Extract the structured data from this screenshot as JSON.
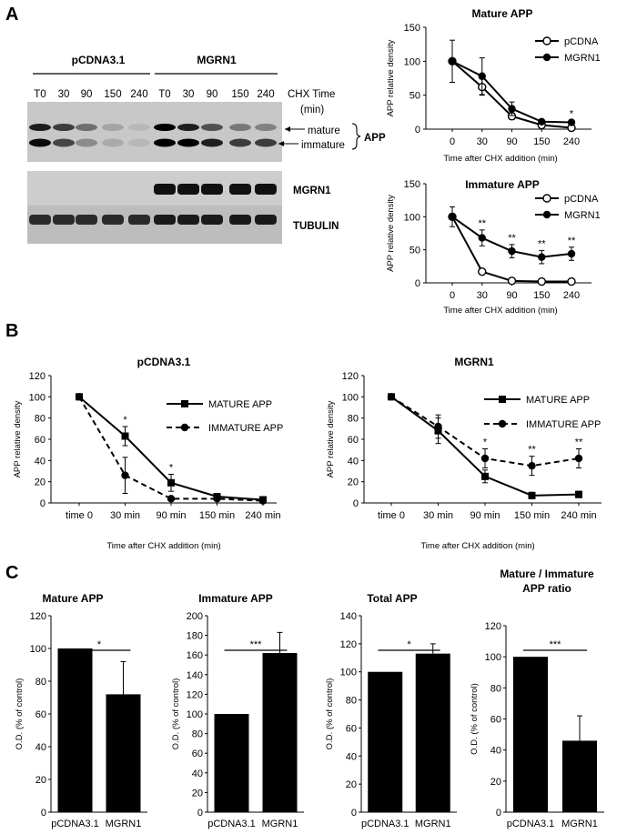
{
  "panels": {
    "A": "A",
    "B": "B",
    "C": "C"
  },
  "colors": {
    "ink": "#000000",
    "paper": "#ffffff",
    "blot_bg": "#c8c8c8"
  },
  "blot": {
    "groups": [
      "pCDNA3.1",
      "MGRN1"
    ],
    "lane_labels": [
      "T0",
      "30",
      "90",
      "150",
      "240",
      "T0",
      "30",
      "90",
      "150",
      "240"
    ],
    "chx_label_line1": "CHX Time",
    "chx_label_line2": "(min)",
    "band_labels": {
      "mature": "mature",
      "immature": "immature",
      "app": "APP"
    },
    "rows": [
      "MGRN1",
      "TUBULIN"
    ]
  },
  "chart_data": [
    {
      "id": "a-mature",
      "type": "line",
      "title": "Mature APP",
      "xlabel": "Time after CHX addition (min)",
      "ylabel": "APP relative density",
      "categories": [
        "0",
        "30",
        "90",
        "150",
        "240"
      ],
      "ylim": [
        0,
        150
      ],
      "yticks": [
        0,
        50,
        100,
        150
      ],
      "series": [
        {
          "name": "pCDNA",
          "values": [
            100,
            62,
            19,
            6,
            2
          ],
          "errors": [
            0,
            12,
            5,
            3,
            2
          ],
          "marker": "circle-open",
          "dash": false
        },
        {
          "name": "MGRN1",
          "values": [
            100,
            78,
            30,
            11,
            10
          ],
          "errors": [
            31,
            27,
            10,
            3,
            3
          ],
          "marker": "circle-filled",
          "dash": false
        }
      ],
      "annotations": [
        {
          "category": 4,
          "y": 10,
          "err": 3,
          "text": "*"
        }
      ],
      "legend": "top-right"
    },
    {
      "id": "a-immature",
      "type": "line",
      "title": "Immature APP",
      "xlabel": "Time after CHX addition (min)",
      "ylabel": "APP relative density",
      "categories": [
        "0",
        "30",
        "90",
        "150",
        "240"
      ],
      "ylim": [
        0,
        150
      ],
      "yticks": [
        0,
        50,
        100,
        150
      ],
      "series": [
        {
          "name": "pCDNA",
          "values": [
            100,
            17,
            3,
            2,
            2
          ],
          "errors": [
            0,
            3,
            1,
            1,
            1
          ],
          "marker": "circle-open",
          "dash": false
        },
        {
          "name": "MGRN1",
          "values": [
            100,
            68,
            48,
            39,
            44
          ],
          "errors": [
            15,
            12,
            10,
            10,
            10
          ],
          "marker": "circle-filled",
          "dash": false
        }
      ],
      "annotations": [
        {
          "category": 1,
          "y": 68,
          "err": 12,
          "text": "**"
        },
        {
          "category": 2,
          "y": 48,
          "err": 10,
          "text": "**"
        },
        {
          "category": 3,
          "y": 39,
          "err": 10,
          "text": "**"
        },
        {
          "category": 4,
          "y": 44,
          "err": 10,
          "text": "**"
        }
      ],
      "legend": "top-right"
    },
    {
      "id": "b-pcdna",
      "type": "line",
      "title": "pCDNA3.1",
      "xlabel": "Time after CHX addition (min)",
      "ylabel": "APP relative density",
      "categories": [
        "time 0",
        "30 min",
        "90 min",
        "150 min",
        "240 min"
      ],
      "ylim": [
        0,
        120
      ],
      "yticks": [
        0,
        20,
        40,
        60,
        80,
        100,
        120
      ],
      "series": [
        {
          "name": "MATURE APP",
          "values": [
            100,
            63,
            19,
            6,
            3
          ],
          "errors": [
            0,
            9,
            8,
            2,
            1
          ],
          "marker": "square-filled",
          "dash": false
        },
        {
          "name": "IMMATURE APP",
          "values": [
            100,
            26,
            4,
            4,
            2
          ],
          "errors": [
            0,
            17,
            2,
            1,
            1
          ],
          "marker": "circle-filled",
          "dash": true
        }
      ],
      "annotations": [
        {
          "category": 1,
          "y": 63,
          "err": 9,
          "text": "*"
        },
        {
          "category": 2,
          "y": 19,
          "err": 8,
          "text": "*"
        }
      ],
      "legend": "top-right"
    },
    {
      "id": "b-mgrn1",
      "type": "line",
      "title": "MGRN1",
      "xlabel": "Time after CHX addition (min)",
      "ylabel": "APP relative density",
      "categories": [
        "time 0",
        "30 min",
        "90 min",
        "150 min",
        "240 min"
      ],
      "ylim": [
        0,
        120
      ],
      "yticks": [
        0,
        20,
        40,
        60,
        80,
        100,
        120
      ],
      "series": [
        {
          "name": "MATURE APP",
          "values": [
            100,
            68,
            25,
            7,
            8
          ],
          "errors": [
            0,
            12,
            6,
            3,
            3
          ],
          "marker": "square-filled",
          "dash": false
        },
        {
          "name": "IMMATURE APP",
          "values": [
            100,
            72,
            42,
            35,
            42
          ],
          "errors": [
            0,
            11,
            9,
            9,
            9
          ],
          "marker": "circle-filled",
          "dash": true
        }
      ],
      "annotations": [
        {
          "category": 2,
          "y": 42,
          "err": 9,
          "text": "*"
        },
        {
          "category": 3,
          "y": 35,
          "err": 9,
          "text": "**"
        },
        {
          "category": 4,
          "y": 42,
          "err": 9,
          "text": "**"
        }
      ],
      "legend": "top-right"
    },
    {
      "id": "c-mature",
      "type": "bar",
      "title": "Mature APP",
      "ylabel": "O.D. (% of control)",
      "categories": [
        "pCDNA3.1",
        "MGRN1"
      ],
      "values": [
        100,
        72
      ],
      "errors": [
        0,
        20
      ],
      "ylim": [
        0,
        120
      ],
      "yticks": [
        0,
        20,
        40,
        60,
        80,
        100,
        120
      ],
      "significance": "*"
    },
    {
      "id": "c-immature",
      "type": "bar",
      "title": "Immature APP",
      "ylabel": "O.D. (% of control)",
      "categories": [
        "pCDNA3.1",
        "MGRN1"
      ],
      "values": [
        100,
        162
      ],
      "errors": [
        0,
        21
      ],
      "ylim": [
        0,
        200
      ],
      "yticks": [
        0,
        20,
        40,
        60,
        80,
        100,
        120,
        140,
        160,
        180,
        200
      ],
      "significance": "***"
    },
    {
      "id": "c-total",
      "type": "bar",
      "title": "Total APP",
      "ylabel": "O.D. (% of control)",
      "categories": [
        "pCDNA3.1",
        "MGRN1"
      ],
      "values": [
        100,
        113
      ],
      "errors": [
        0,
        7
      ],
      "ylim": [
        0,
        140
      ],
      "yticks": [
        0,
        20,
        40,
        60,
        80,
        100,
        120,
        140
      ],
      "significance": "*"
    },
    {
      "id": "c-ratio",
      "type": "bar",
      "title": "Mature /  Immature",
      "title2": "APP ratio",
      "ylabel": "O.D. (% of control)",
      "categories": [
        "pCDNA3.1",
        "MGRN1"
      ],
      "values": [
        100,
        46
      ],
      "errors": [
        0,
        16
      ],
      "ylim": [
        0,
        120
      ],
      "yticks": [
        0,
        20,
        40,
        60,
        80,
        100,
        120
      ],
      "significance": "***"
    }
  ]
}
